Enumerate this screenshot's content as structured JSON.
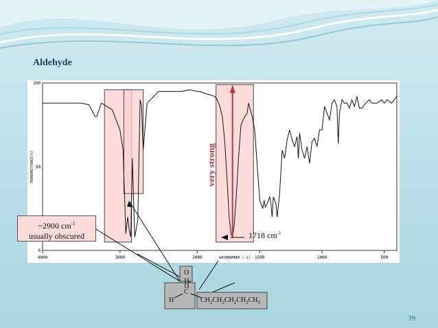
{
  "slide": {
    "title": "Aldehyde",
    "page_number": "39"
  },
  "annotations": {
    "callout_2900_line1": "~2900 cm",
    "callout_2900_sup": "-1",
    "callout_2900_line2": "usually obscured",
    "label_1718": "1718 cm",
    "label_1718_sup": "-1",
    "very_strong": "very strong"
  },
  "molecule": {
    "oxygen": "O",
    "carbon": "C",
    "hydrogen": "H",
    "chain_parts": [
      "CH",
      "2",
      "CH",
      "2",
      "CH",
      "2",
      "CH",
      "2",
      "CH",
      "3"
    ]
  },
  "colors": {
    "highlight": "#ffd0d0",
    "arrow": "#c0343a",
    "title": "#1e3f66"
  },
  "chart_data": {
    "type": "line",
    "title": "",
    "xlabel": "WAVENUMBER (-1)",
    "ylabel": "TRANSMITTANCE(%)",
    "xlim": [
      4000,
      400
    ],
    "ylim": [
      0,
      100
    ],
    "x_ticks": [
      "4000",
      "3000",
      "2000",
      "1500",
      "1000",
      "500"
    ],
    "y_ticks": [
      "0",
      "50",
      "100"
    ],
    "series": [
      {
        "values_x": [
          4000,
          3700,
          3500,
          3400,
          3320,
          3300,
          3240,
          3100,
          3000,
          2960,
          2950,
          2935,
          2925,
          2900,
          2880,
          2860,
          2840,
          2810,
          2770,
          2740,
          2720,
          2700,
          2650,
          2500,
          2300,
          2200,
          2100,
          2000,
          1980,
          1950,
          1900,
          1860,
          1840,
          1820,
          1800,
          1780,
          1760,
          1745,
          1730,
          1718,
          1705,
          1690,
          1670,
          1650,
          1620,
          1600,
          1590,
          1560,
          1540,
          1500,
          1480,
          1475,
          1465,
          1455,
          1440,
          1420,
          1410,
          1400,
          1390,
          1380,
          1370,
          1360,
          1340,
          1320,
          1300,
          1280,
          1260,
          1240,
          1220,
          1200,
          1190,
          1180,
          1160,
          1140,
          1120,
          1100,
          1080,
          1060,
          1040,
          1020,
          1000,
          980,
          960,
          940,
          920,
          900,
          880,
          870,
          860,
          840,
          820,
          800,
          780,
          760,
          740,
          720,
          700,
          680,
          650,
          620,
          600,
          560,
          520,
          500,
          480,
          440,
          400
        ],
        "values_y": [
          88,
          88,
          88,
          87,
          80,
          80,
          88,
          84,
          72,
          60,
          45,
          25,
          10,
          20,
          12,
          8,
          55,
          8,
          18,
          90,
          86,
          60,
          88,
          95,
          95,
          95,
          96,
          95,
          95,
          94,
          93,
          92,
          90,
          86,
          80,
          65,
          40,
          20,
          10,
          8,
          15,
          30,
          55,
          75,
          80,
          82,
          88,
          80,
          72,
          30,
          26,
          25,
          30,
          26,
          28,
          32,
          28,
          20,
          32,
          30,
          28,
          20,
          34,
          60,
          55,
          66,
          72,
          66,
          62,
          68,
          55,
          70,
          60,
          55,
          62,
          52,
          65,
          67,
          62,
          72,
          72,
          86,
          82,
          78,
          88,
          90,
          86,
          64,
          82,
          90,
          88,
          88,
          85,
          90,
          86,
          92,
          85,
          85,
          88,
          90,
          88,
          88,
          90,
          88,
          90,
          88,
          92
        ]
      }
    ],
    "highlight_regions": [
      {
        "x_from": 3200,
        "x_to": 2850,
        "y_from": 5,
        "y_to": 96
      },
      {
        "x_from": 2950,
        "x_to": 2700,
        "y_from": 34,
        "y_to": 96
      },
      {
        "x_from": 1850,
        "x_to": 1550,
        "y_from": 5,
        "y_to": 99
      }
    ]
  }
}
